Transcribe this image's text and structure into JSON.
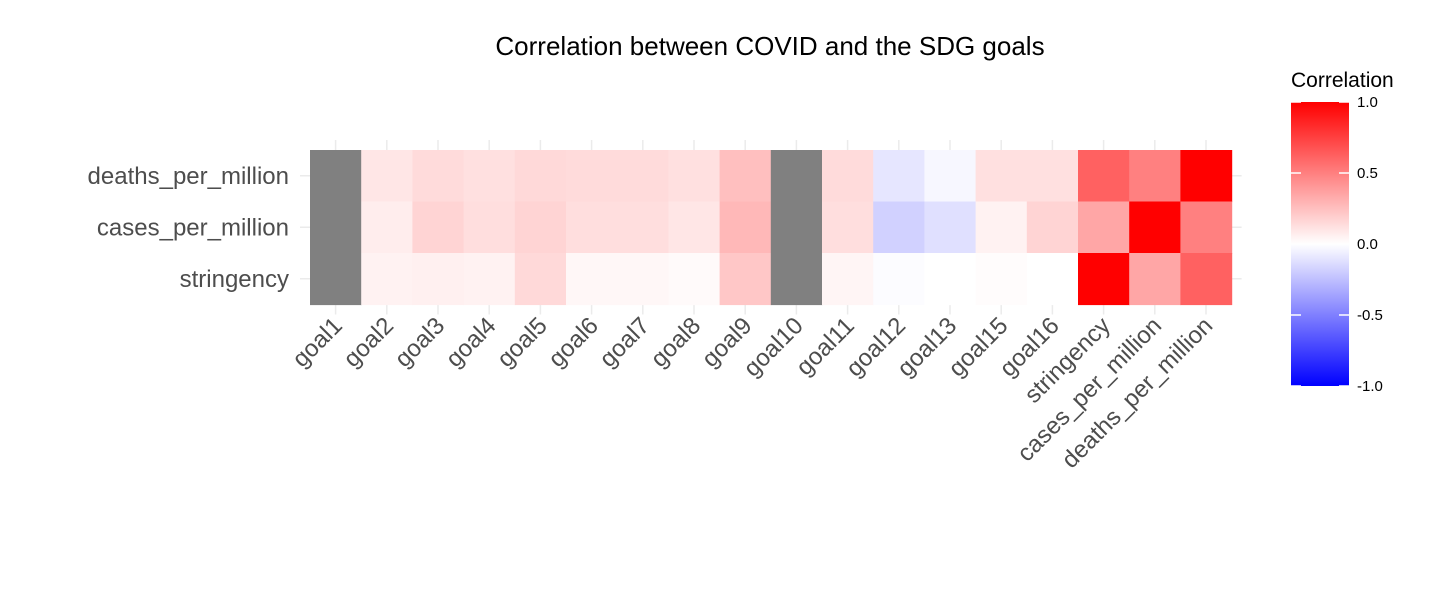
{
  "chart_data": {
    "type": "heatmap",
    "title": "Correlation between COVID and the SDG goals",
    "x_categories": [
      "goal1",
      "goal2",
      "goal3",
      "goal4",
      "goal5",
      "goal6",
      "goal7",
      "goal8",
      "goal9",
      "goal10",
      "goal11",
      "goal12",
      "goal13",
      "goal15",
      "goal16",
      "stringency",
      "cases_per_million",
      "deaths_per_million"
    ],
    "y_categories": [
      "deaths_per_million",
      "cases_per_million",
      "stringency"
    ],
    "values": [
      [
        null,
        0.1,
        0.14,
        0.12,
        0.15,
        0.14,
        0.14,
        0.12,
        0.25,
        null,
        0.14,
        -0.1,
        -0.03,
        0.12,
        0.12,
        0.62,
        0.5,
        1.0
      ],
      [
        null,
        0.07,
        0.17,
        0.13,
        0.17,
        0.13,
        0.13,
        0.1,
        0.28,
        null,
        0.13,
        -0.18,
        -0.12,
        0.05,
        0.17,
        0.35,
        1.0,
        0.5
      ],
      [
        null,
        0.05,
        0.06,
        0.05,
        0.15,
        0.03,
        0.03,
        0.02,
        0.22,
        null,
        0.04,
        -0.01,
        0.0,
        0.01,
        0.0,
        1.0,
        0.35,
        0.62
      ]
    ],
    "na_color": "#808080",
    "colorscale": {
      "low": "#0000FF",
      "mid": "#FFFFFF",
      "high": "#FF0000"
    },
    "legend": {
      "title": "Correlation",
      "range": [
        -1.0,
        1.0
      ],
      "ticks": [
        "1.0",
        "0.5",
        "0.0",
        "-0.5",
        "-1.0"
      ],
      "position": "right"
    },
    "grid": true
  }
}
